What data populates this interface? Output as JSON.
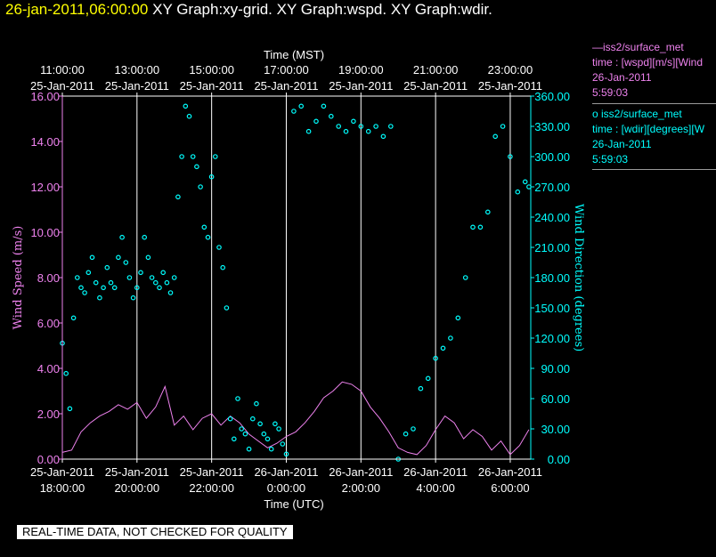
{
  "header": {
    "timestamp": "26-jan-2011,06:00:00",
    "titles": "XY Graph:xy-grid.  XY Graph:wspd.  XY Graph:wdir."
  },
  "legend": {
    "wspd": {
      "name": "iss2/surface_met",
      "desc": "time : [wspd][m/s][Wind",
      "date": "26-Jan-2011",
      "time": "5:59:03"
    },
    "wdir": {
      "name": "iss2/surface_met",
      "desc": "time : [wdir][degrees][W",
      "date": "26-Jan-2011",
      "time": "5:59:03"
    }
  },
  "notice": "REAL-TIME DATA, NOT CHECKED FOR QUALITY",
  "colors": {
    "wspd": "#ee82ee",
    "wdir": "#00ffff",
    "grid": "#ffffff",
    "background": "#000000",
    "header_timestamp": "#ffff00"
  },
  "chart_data": {
    "type": "line",
    "top_axis": {
      "title": "Time (MST)",
      "ticks": [
        {
          "hour_utc": 18,
          "label1": "11:00:00",
          "label2": "25-Jan-2011"
        },
        {
          "hour_utc": 20,
          "label1": "13:00:00",
          "label2": "25-Jan-2011"
        },
        {
          "hour_utc": 22,
          "label1": "15:00:00",
          "label2": "25-Jan-2011"
        },
        {
          "hour_utc": 24,
          "label1": "17:00:00",
          "label2": "25-Jan-2011"
        },
        {
          "hour_utc": 26,
          "label1": "19:00:00",
          "label2": "25-Jan-2011"
        },
        {
          "hour_utc": 28,
          "label1": "21:00:00",
          "label2": "25-Jan-2011"
        },
        {
          "hour_utc": 30,
          "label1": "23:00:00",
          "label2": "25-Jan-2011"
        }
      ]
    },
    "bottom_axis": {
      "title": "Time (UTC)",
      "ticks": [
        {
          "hour_utc": 18,
          "label1": "25-Jan-2011",
          "label2": "18:00:00"
        },
        {
          "hour_utc": 20,
          "label1": "25-Jan-2011",
          "label2": "20:00:00"
        },
        {
          "hour_utc": 22,
          "label1": "25-Jan-2011",
          "label2": "22:00:00"
        },
        {
          "hour_utc": 24,
          "label1": "26-Jan-2011",
          "label2": "0:00:00"
        },
        {
          "hour_utc": 26,
          "label1": "26-Jan-2011",
          "label2": "2:00:00"
        },
        {
          "hour_utc": 28,
          "label1": "26-Jan-2011",
          "label2": "4:00:00"
        },
        {
          "hour_utc": 30,
          "label1": "26-Jan-2011",
          "label2": "6:00:00"
        }
      ]
    },
    "xlim_hours": [
      18,
      30.55
    ],
    "left_axis": {
      "title": "Wind Speed (m/s)",
      "ylim": [
        0,
        16
      ],
      "ticks": [
        0,
        2,
        4,
        6,
        8,
        10,
        12,
        14,
        16
      ],
      "tick_labels": [
        "0.00",
        "2.00",
        "4.00",
        "6.00",
        "8.00",
        "10.00",
        "12.00",
        "14.00",
        "16.00"
      ]
    },
    "right_axis": {
      "title": "Wind Direction (degrees)",
      "ylim": [
        0,
        360
      ],
      "ticks": [
        0,
        30,
        60,
        90,
        120,
        150,
        180,
        210,
        240,
        270,
        300,
        330,
        360
      ],
      "tick_labels": [
        "0.00",
        "30.00",
        "60.00",
        "90.00",
        "120.00",
        "150.00",
        "180.00",
        "210.00",
        "240.00",
        "270.00",
        "300.00",
        "330.00",
        "360.00"
      ]
    },
    "grid": true,
    "series": [
      {
        "key": "wspd",
        "style": "line",
        "hours": [
          18.0,
          18.25,
          18.5,
          18.75,
          19.0,
          19.25,
          19.5,
          19.75,
          20.0,
          20.25,
          20.5,
          20.75,
          21.0,
          21.25,
          21.5,
          21.75,
          22.0,
          22.25,
          22.5,
          22.75,
          23.0,
          23.25,
          23.5,
          23.75,
          24.0,
          24.25,
          24.5,
          24.75,
          25.0,
          25.25,
          25.5,
          25.75,
          26.0,
          26.25,
          26.5,
          26.75,
          27.0,
          27.25,
          27.5,
          27.75,
          28.0,
          28.25,
          28.5,
          28.75,
          29.0,
          29.25,
          29.5,
          29.75,
          30.0,
          30.25,
          30.5
        ],
        "values": [
          0.3,
          0.4,
          1.2,
          1.6,
          1.9,
          2.1,
          2.4,
          2.2,
          2.5,
          1.8,
          2.3,
          3.2,
          1.5,
          1.9,
          1.3,
          1.8,
          2.0,
          1.5,
          1.9,
          1.6,
          1.1,
          0.8,
          0.5,
          0.7,
          1.0,
          1.2,
          1.6,
          2.1,
          2.7,
          3.0,
          3.4,
          3.3,
          3.0,
          2.3,
          1.8,
          1.2,
          0.5,
          0.3,
          0.2,
          0.6,
          1.3,
          1.9,
          1.6,
          0.9,
          1.3,
          1.0,
          0.4,
          0.8,
          0.2,
          0.6,
          1.3
        ]
      },
      {
        "key": "wdir",
        "style": "markers",
        "hours": [
          18.0,
          18.1,
          18.2,
          18.3,
          18.4,
          18.5,
          18.6,
          18.7,
          18.8,
          18.9,
          19.0,
          19.1,
          19.2,
          19.3,
          19.4,
          19.5,
          19.6,
          19.7,
          19.8,
          19.9,
          20.0,
          20.1,
          20.2,
          20.3,
          20.4,
          20.5,
          20.6,
          20.7,
          20.8,
          20.9,
          21.0,
          21.1,
          21.2,
          21.3,
          21.4,
          21.5,
          21.6,
          21.7,
          21.8,
          21.9,
          22.0,
          22.1,
          22.2,
          22.3,
          22.4,
          22.5,
          22.6,
          22.7,
          22.8,
          22.9,
          23.0,
          23.1,
          23.2,
          23.3,
          23.4,
          23.5,
          23.6,
          23.7,
          23.8,
          23.9,
          24.0,
          24.2,
          24.4,
          24.6,
          24.8,
          25.0,
          25.2,
          25.4,
          25.6,
          25.8,
          26.0,
          26.2,
          26.4,
          26.6,
          26.8,
          27.0,
          27.2,
          27.4,
          27.6,
          27.8,
          28.0,
          28.2,
          28.4,
          28.6,
          28.8,
          29.0,
          29.2,
          29.4,
          29.6,
          29.8,
          30.0,
          30.2,
          30.4,
          30.5
        ],
        "values": [
          115,
          85,
          50,
          140,
          180,
          170,
          165,
          185,
          200,
          175,
          160,
          170,
          190,
          175,
          170,
          200,
          220,
          195,
          180,
          160,
          170,
          185,
          220,
          200,
          180,
          175,
          170,
          185,
          175,
          165,
          180,
          260,
          300,
          350,
          340,
          300,
          290,
          270,
          230,
          220,
          280,
          300,
          210,
          190,
          150,
          40,
          20,
          60,
          30,
          25,
          10,
          40,
          55,
          35,
          25,
          20,
          10,
          35,
          30,
          15,
          5,
          345,
          350,
          325,
          335,
          350,
          340,
          330,
          325,
          335,
          330,
          325,
          330,
          320,
          330,
          0,
          25,
          30,
          70,
          80,
          100,
          110,
          120,
          140,
          180,
          230,
          230,
          245,
          320,
          330,
          300,
          265,
          275,
          270
        ]
      }
    ]
  }
}
